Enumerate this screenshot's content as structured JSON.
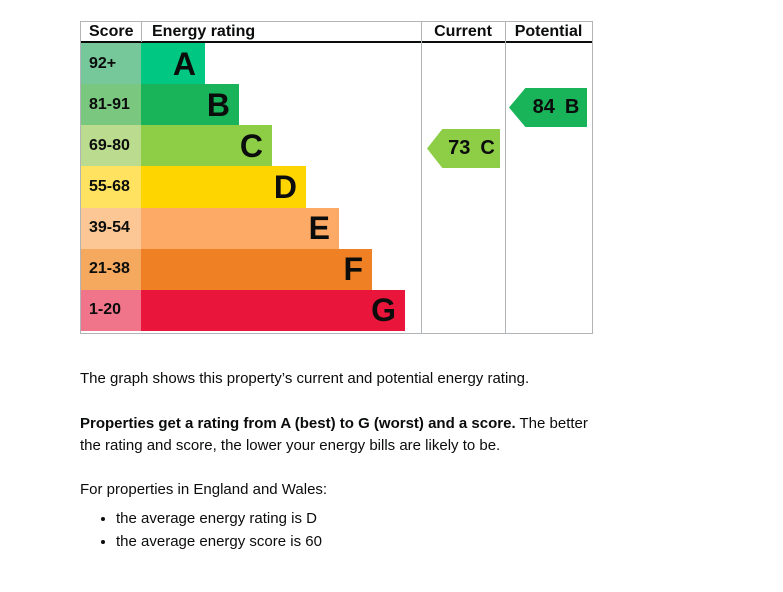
{
  "chart": {
    "headers": {
      "score": "Score",
      "rating": "Energy rating",
      "current": "Current",
      "potential": "Potential"
    },
    "bands": [
      {
        "score": "92+",
        "letter": "A",
        "color": "#00c781",
        "score_color": "#76c89b"
      },
      {
        "score": "81-91",
        "letter": "B",
        "color": "#19b459",
        "score_color": "#7ac77f"
      },
      {
        "score": "69-80",
        "letter": "C",
        "color": "#8dce46",
        "score_color": "#bbdc8e"
      },
      {
        "score": "55-68",
        "letter": "D",
        "color": "#ffd500",
        "score_color": "#ffe360"
      },
      {
        "score": "39-54",
        "letter": "E",
        "color": "#fcaa65",
        "score_color": "#fcc795"
      },
      {
        "score": "21-38",
        "letter": "F",
        "color": "#ef8023",
        "score_color": "#f4a95e"
      },
      {
        "score": "1-20",
        "letter": "G",
        "color": "#e9153b",
        "score_color": "#f0758b"
      }
    ],
    "current": {
      "value": "73",
      "letter": "C",
      "color": "#8dce46"
    },
    "potential": {
      "value": "84",
      "letter": "B",
      "color": "#19b459"
    }
  },
  "chart_data": {
    "type": "bar",
    "title": "Energy rating graph (EPC)",
    "categories": [
      "A",
      "B",
      "C",
      "D",
      "E",
      "F",
      "G"
    ],
    "score_ranges": [
      "92+",
      "81-91",
      "69-80",
      "55-68",
      "39-54",
      "21-38",
      "1-20"
    ],
    "band_colors": [
      "#00c781",
      "#19b459",
      "#8dce46",
      "#ffd500",
      "#fcaa65",
      "#ef8023",
      "#e9153b"
    ],
    "bar_relative_lengths": [
      1,
      2,
      3,
      4,
      5,
      6,
      7
    ],
    "columns": [
      "Score",
      "Energy rating",
      "Current",
      "Potential"
    ],
    "current_rating": {
      "score": 73,
      "band": "C",
      "column": "Current"
    },
    "potential_rating": {
      "score": 84,
      "band": "B",
      "column": "Potential"
    },
    "legend_position": "none",
    "grid": false
  },
  "text": {
    "p1": "The graph shows this property’s current and potential energy rating.",
    "p2_bold": "Properties get a rating from A (best) to G (worst) and a score.",
    "p2_rest": " The better the rating and score, the lower your energy bills are likely to be.",
    "p3": "For properties in England and Wales:",
    "bullets": [
      "the average energy rating is D",
      "the average energy score is 60"
    ]
  }
}
